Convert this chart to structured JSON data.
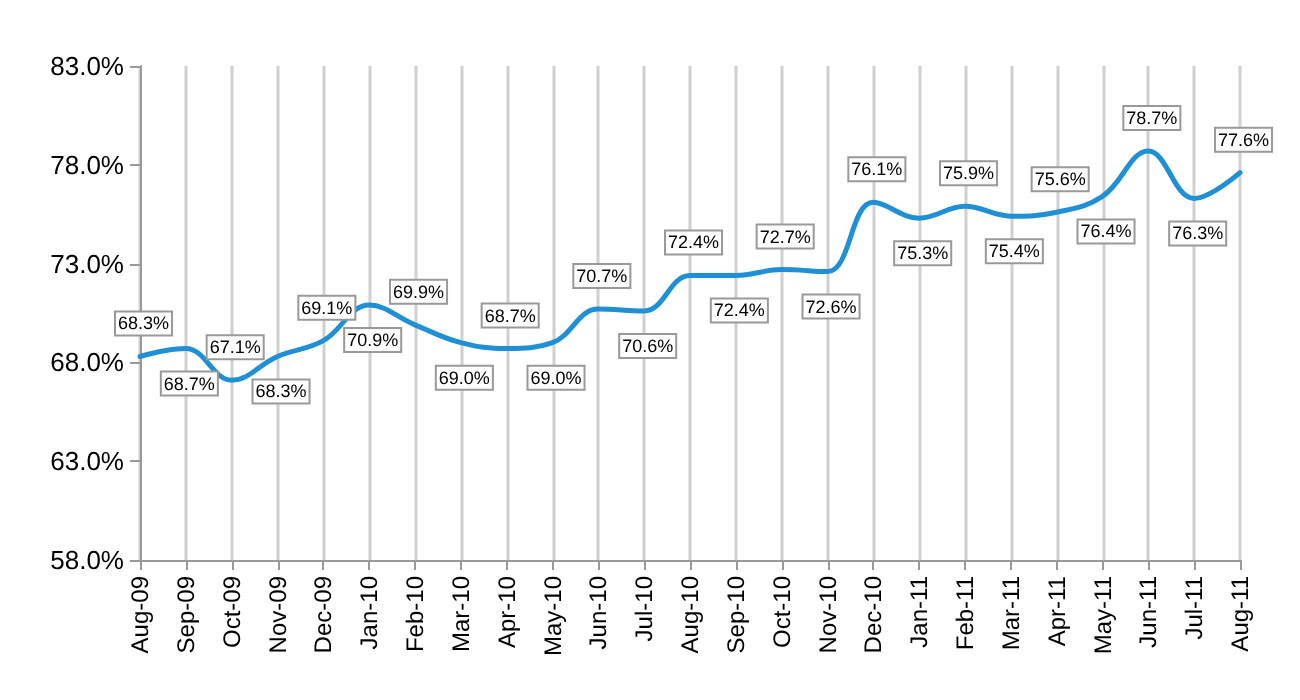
{
  "chart_data": {
    "type": "line",
    "categories": [
      "Aug-09",
      "Sep-09",
      "Oct-09",
      "Nov-09",
      "Dec-09",
      "Jan-10",
      "Feb-10",
      "Mar-10",
      "Apr-10",
      "May-10",
      "Jun-10",
      "Jul-10",
      "Aug-10",
      "Sep-10",
      "Oct-10",
      "Nov-10",
      "Dec-10",
      "Jan-11",
      "Feb-11",
      "Mar-11",
      "Apr-11",
      "May-11",
      "Jun-11",
      "Jul-11",
      "Aug-11"
    ],
    "series": [
      {
        "color": "#1f8fd6",
        "values": [
          68.3,
          68.7,
          67.1,
          68.3,
          69.1,
          70.9,
          69.9,
          69.0,
          68.7,
          69.0,
          70.7,
          70.6,
          72.4,
          72.4,
          72.7,
          72.6,
          76.1,
          75.3,
          75.9,
          75.4,
          75.6,
          76.4,
          78.7,
          76.3,
          77.6
        ],
        "value_labels": [
          "68.3%",
          "68.7%",
          "67.1%",
          "68.3%",
          "69.1%",
          "70.9%",
          "69.9%",
          "69.0%",
          "68.7%",
          "69.0%",
          "70.7%",
          "70.6%",
          "72.4%",
          "72.4%",
          "72.7%",
          "72.6%",
          "76.1%",
          "75.3%",
          "75.9%",
          "75.4%",
          "75.6%",
          "76.4%",
          "78.7%",
          "76.3%",
          "77.6%"
        ]
      }
    ],
    "ylim": [
      58,
      83
    ],
    "yticks": [
      {
        "value": 58,
        "label": "58.0%"
      },
      {
        "value": 63,
        "label": "63.0%"
      },
      {
        "value": 68,
        "label": "68.0%"
      },
      {
        "value": 73,
        "label": "73.0%"
      },
      {
        "value": 78,
        "label": "78.0%"
      },
      {
        "value": 83,
        "label": "83.0%"
      }
    ],
    "grid": "x",
    "marker": "none",
    "line_style": "solid"
  }
}
